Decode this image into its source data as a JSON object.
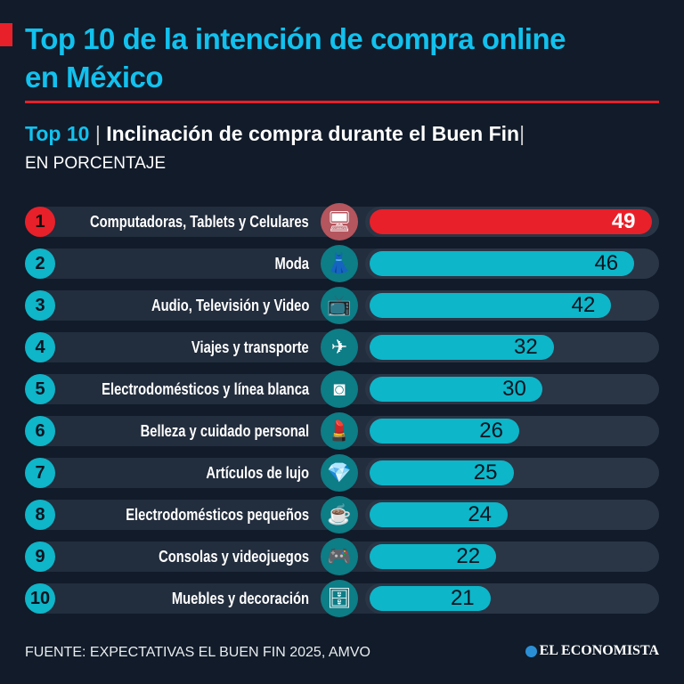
{
  "title": "Top 10 de la intención de compra online en México",
  "subtitle": {
    "highlight": "Top 10",
    "separator": "|",
    "text": "Inclinación de compra durante el Buen Fin",
    "end": "|"
  },
  "unit": "EN PORCENTAJE",
  "source": "FUENTE: EXPECTATIVAS EL BUEN FIN 2025, AMVO",
  "logo": "EL ECONOMISTA",
  "colors": {
    "background": "#111b29",
    "accent": "#e8202a",
    "teal": "#0db6c9",
    "title": "#12c1ee"
  },
  "chart_data": {
    "type": "bar",
    "orientation": "horizontal",
    "title": "Inclinación de compra durante el Buen Fin",
    "unit": "porcentaje",
    "ranks": [
      "1",
      "2",
      "3",
      "4",
      "5",
      "6",
      "7",
      "8",
      "9",
      "10"
    ],
    "categories": [
      "Computadoras, Tablets y Celulares",
      "Moda",
      "Audio, Televisión y Video",
      "Viajes y transporte",
      "Electrodomésticos y línea blanca",
      "Belleza y cuidado personal",
      "Artículos de lujo",
      "Electrodomésticos pequeños",
      "Consolas y videojuegos",
      "Muebles y decoración"
    ],
    "icons": [
      "computer-devices-icon",
      "dress-icon",
      "tv-icon",
      "airplane-icon",
      "washing-machine-icon",
      "cosmetics-icon",
      "diamond-icon",
      "coffee-maker-icon",
      "game-console-icon",
      "furniture-icon"
    ],
    "values": [
      49,
      46,
      42,
      32,
      30,
      26,
      25,
      24,
      22,
      21
    ],
    "xlim": [
      0,
      50
    ]
  }
}
